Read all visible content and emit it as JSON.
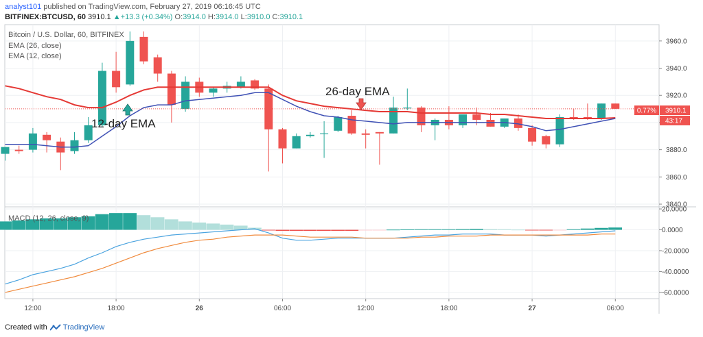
{
  "header": {
    "user": "analyst101",
    "published_text": "published on TradingView.com, February 27, 2019 06:16:45 UTC",
    "symbol": "BITFINEX:BTCUSD, 60",
    "last": "3910.1",
    "change": "+13.3 (+0.34%)",
    "o_label": "O:",
    "o": "3914.0",
    "h_label": "H:",
    "h": "3914.0",
    "l_label": "L:",
    "l": "3910.0",
    "c_label": "C:",
    "c": "3910.1"
  },
  "legend": {
    "main": "Bitcoin / U.S. Dollar, 60, BITFINEX",
    "ema26": "EMA (26, close)",
    "ema12": "EMA (12, close)",
    "macd": "MACD (12, 26, close, 9)"
  },
  "annotations": {
    "ema12": "12-day EMA",
    "ema26": "26-day EMA"
  },
  "price_badges": {
    "change_pct": "0.77%",
    "price": "3910.1",
    "countdown": "43:17"
  },
  "footer": {
    "created_with": "Created with",
    "brand": "TradingView"
  },
  "colors": {
    "up": "#26a69a",
    "down": "#ef5350",
    "ema26": "#e53935",
    "ema12": "#3f51b5",
    "macd_line": "#4aa3df",
    "signal_line": "#f08a3c",
    "hist_up_strong": "#26a69a",
    "hist_up_weak": "#b2dfdb",
    "hist_down_strong": "#ef5350",
    "hist_down_weak": "#ffcdd2"
  },
  "chart_data": {
    "type": "candlestick",
    "price_axis": {
      "ticks": [
        3960,
        3940,
        3920,
        3900,
        3880,
        3860,
        3840
      ],
      "range": [
        3838,
        3972
      ]
    },
    "macd_axis": {
      "ticks": [
        20,
        0,
        -20,
        -40,
        -60
      ],
      "tick_labels": [
        "20.0000",
        "0.0000",
        "-20.0000",
        "-40.0000",
        "-60.0000"
      ],
      "range": [
        -66,
        22
      ]
    },
    "time_axis": {
      "labels": [
        "12:00",
        "18:00",
        "26",
        "06:00",
        "12:00",
        "18:00",
        "27",
        "06:00"
      ],
      "bold": [
        "26",
        "27"
      ],
      "label_bar_index": [
        2,
        8,
        14,
        20,
        26,
        32,
        38,
        44
      ]
    },
    "candles": [
      {
        "o": 3877,
        "h": 3882,
        "l": 3872,
        "c": 3882
      },
      {
        "o": 3880,
        "h": 3883,
        "l": 3877,
        "c": 3879
      },
      {
        "o": 3880,
        "h": 3896,
        "l": 3878,
        "c": 3892
      },
      {
        "o": 3891,
        "h": 3893,
        "l": 3878,
        "c": 3887
      },
      {
        "o": 3886,
        "h": 3889,
        "l": 3865,
        "c": 3878
      },
      {
        "o": 3879,
        "h": 3893,
        "l": 3877,
        "c": 3887
      },
      {
        "o": 3887,
        "h": 3904,
        "l": 3885,
        "c": 3898
      },
      {
        "o": 3898,
        "h": 3944,
        "l": 3897,
        "c": 3938
      },
      {
        "o": 3938,
        "h": 3952,
        "l": 3922,
        "c": 3926
      },
      {
        "o": 3928,
        "h": 3967,
        "l": 3927,
        "c": 3960
      },
      {
        "o": 3963,
        "h": 3967,
        "l": 3943,
        "c": 3945
      },
      {
        "o": 3948,
        "h": 3950,
        "l": 3930,
        "c": 3936
      },
      {
        "o": 3936,
        "h": 3938,
        "l": 3900,
        "c": 3913
      },
      {
        "o": 3910,
        "h": 3934,
        "l": 3908,
        "c": 3930
      },
      {
        "o": 3930,
        "h": 3933,
        "l": 3919,
        "c": 3922
      },
      {
        "o": 3922,
        "h": 3926,
        "l": 3919,
        "c": 3925
      },
      {
        "o": 3925,
        "h": 3930,
        "l": 3922,
        "c": 3927
      },
      {
        "o": 3926,
        "h": 3934,
        "l": 3925,
        "c": 3930
      },
      {
        "o": 3931,
        "h": 3932,
        "l": 3924,
        "c": 3925
      },
      {
        "o": 3925,
        "h": 3928,
        "l": 3864,
        "c": 3895
      },
      {
        "o": 3895,
        "h": 3896,
        "l": 3870,
        "c": 3881
      },
      {
        "o": 3881,
        "h": 3892,
        "l": 3881,
        "c": 3890
      },
      {
        "o": 3890,
        "h": 3893,
        "l": 3889,
        "c": 3891
      },
      {
        "o": 3892,
        "h": 3901,
        "l": 3874,
        "c": 3892
      },
      {
        "o": 3894,
        "h": 3905,
        "l": 3893,
        "c": 3904
      },
      {
        "o": 3905,
        "h": 3909,
        "l": 3891,
        "c": 3892
      },
      {
        "o": 3892,
        "h": 3895,
        "l": 3881,
        "c": 3891
      },
      {
        "o": 3893,
        "h": 3893,
        "l": 3869,
        "c": 3892
      },
      {
        "o": 3892,
        "h": 3919,
        "l": 3892,
        "c": 3911
      },
      {
        "o": 3911,
        "h": 3925,
        "l": 3909,
        "c": 3911
      },
      {
        "o": 3911,
        "h": 3912,
        "l": 3893,
        "c": 3898
      },
      {
        "o": 3898,
        "h": 3903,
        "l": 3887,
        "c": 3902
      },
      {
        "o": 3902,
        "h": 3912,
        "l": 3895,
        "c": 3898
      },
      {
        "o": 3898,
        "h": 3905,
        "l": 3896,
        "c": 3906
      },
      {
        "o": 3906,
        "h": 3911,
        "l": 3898,
        "c": 3902
      },
      {
        "o": 3902,
        "h": 3907,
        "l": 3897,
        "c": 3897
      },
      {
        "o": 3897,
        "h": 3903,
        "l": 3896,
        "c": 3903
      },
      {
        "o": 3903,
        "h": 3906,
        "l": 3894,
        "c": 3896
      },
      {
        "o": 3896,
        "h": 3898,
        "l": 3883,
        "c": 3886
      },
      {
        "o": 3890,
        "h": 3891,
        "l": 3881,
        "c": 3884
      },
      {
        "o": 3884,
        "h": 3906,
        "l": 3882,
        "c": 3904
      },
      {
        "o": 3904,
        "h": 3910,
        "l": 3902,
        "c": 3903
      },
      {
        "o": 3904,
        "h": 3914,
        "l": 3902,
        "c": 3903
      },
      {
        "o": 3903,
        "h": 3914,
        "l": 3902,
        "c": 3914
      },
      {
        "o": 3914,
        "h": 3914,
        "l": 3910,
        "c": 3910.1
      }
    ],
    "ema26": [
      3927,
      3925,
      3922,
      3919,
      3917,
      3913,
      3911,
      3911,
      3915,
      3920,
      3924,
      3926,
      3926,
      3926,
      3926,
      3926,
      3926,
      3926,
      3926,
      3926,
      3920,
      3916,
      3914,
      3912,
      3911,
      3910,
      3909,
      3908,
      3908,
      3908,
      3907,
      3907,
      3907,
      3907,
      3907,
      3906,
      3906,
      3905,
      3904,
      3903,
      3903,
      3903,
      3903,
      3903,
      3903.5
    ],
    "ema12": [
      3884,
      3884,
      3884,
      3883,
      3882,
      3882,
      3883,
      3890,
      3897,
      3905,
      3911,
      3913,
      3913,
      3916,
      3917,
      3918,
      3919,
      3920,
      3922,
      3922,
      3917,
      3912,
      3908,
      3905,
      3904,
      3902,
      3901,
      3900,
      3899,
      3900,
      3900,
      3900,
      3900,
      3900,
      3900,
      3900,
      3900,
      3899,
      3897,
      3894,
      3895,
      3897,
      3899,
      3901,
      3903
    ],
    "macd_line": [
      -52,
      -48,
      -43,
      -40,
      -37,
      -33,
      -27,
      -22,
      -16,
      -12,
      -9,
      -7,
      -5,
      -4,
      -3,
      -2,
      -1,
      0,
      1,
      -3,
      -8,
      -10,
      -10,
      -9,
      -8,
      -8,
      -8,
      -8,
      -8,
      -7,
      -6,
      -5,
      -5,
      -4,
      -4,
      -4,
      -5,
      -5,
      -5,
      -6,
      -5,
      -4,
      -3,
      -2,
      -1
    ],
    "signal_line": [
      -60,
      -57,
      -54,
      -51,
      -48,
      -45,
      -41,
      -37,
      -32,
      -27,
      -22,
      -18,
      -15,
      -12,
      -10,
      -9,
      -7,
      -6,
      -5,
      -5,
      -5,
      -6,
      -7,
      -7,
      -7,
      -7,
      -8,
      -8,
      -8,
      -8,
      -7,
      -7,
      -6,
      -6,
      -6,
      -5,
      -5,
      -5,
      -5,
      -5,
      -5,
      -5,
      -5,
      -4,
      -4
    ],
    "histogram": [
      8,
      9,
      10,
      11,
      11,
      12,
      13,
      15,
      16,
      16,
      14,
      12,
      10,
      8,
      7,
      6,
      5,
      4,
      2,
      -0.6,
      -1,
      -1,
      -1,
      -1,
      -1,
      -1,
      -0.5,
      -0.2,
      0.2,
      0.4,
      0.6,
      0.6,
      0.6,
      0.8,
      1,
      0.8,
      0.6,
      0.2,
      -0.2,
      -0.4,
      -0.2,
      0.6,
      1.2,
      1.8,
      2.2
    ]
  }
}
